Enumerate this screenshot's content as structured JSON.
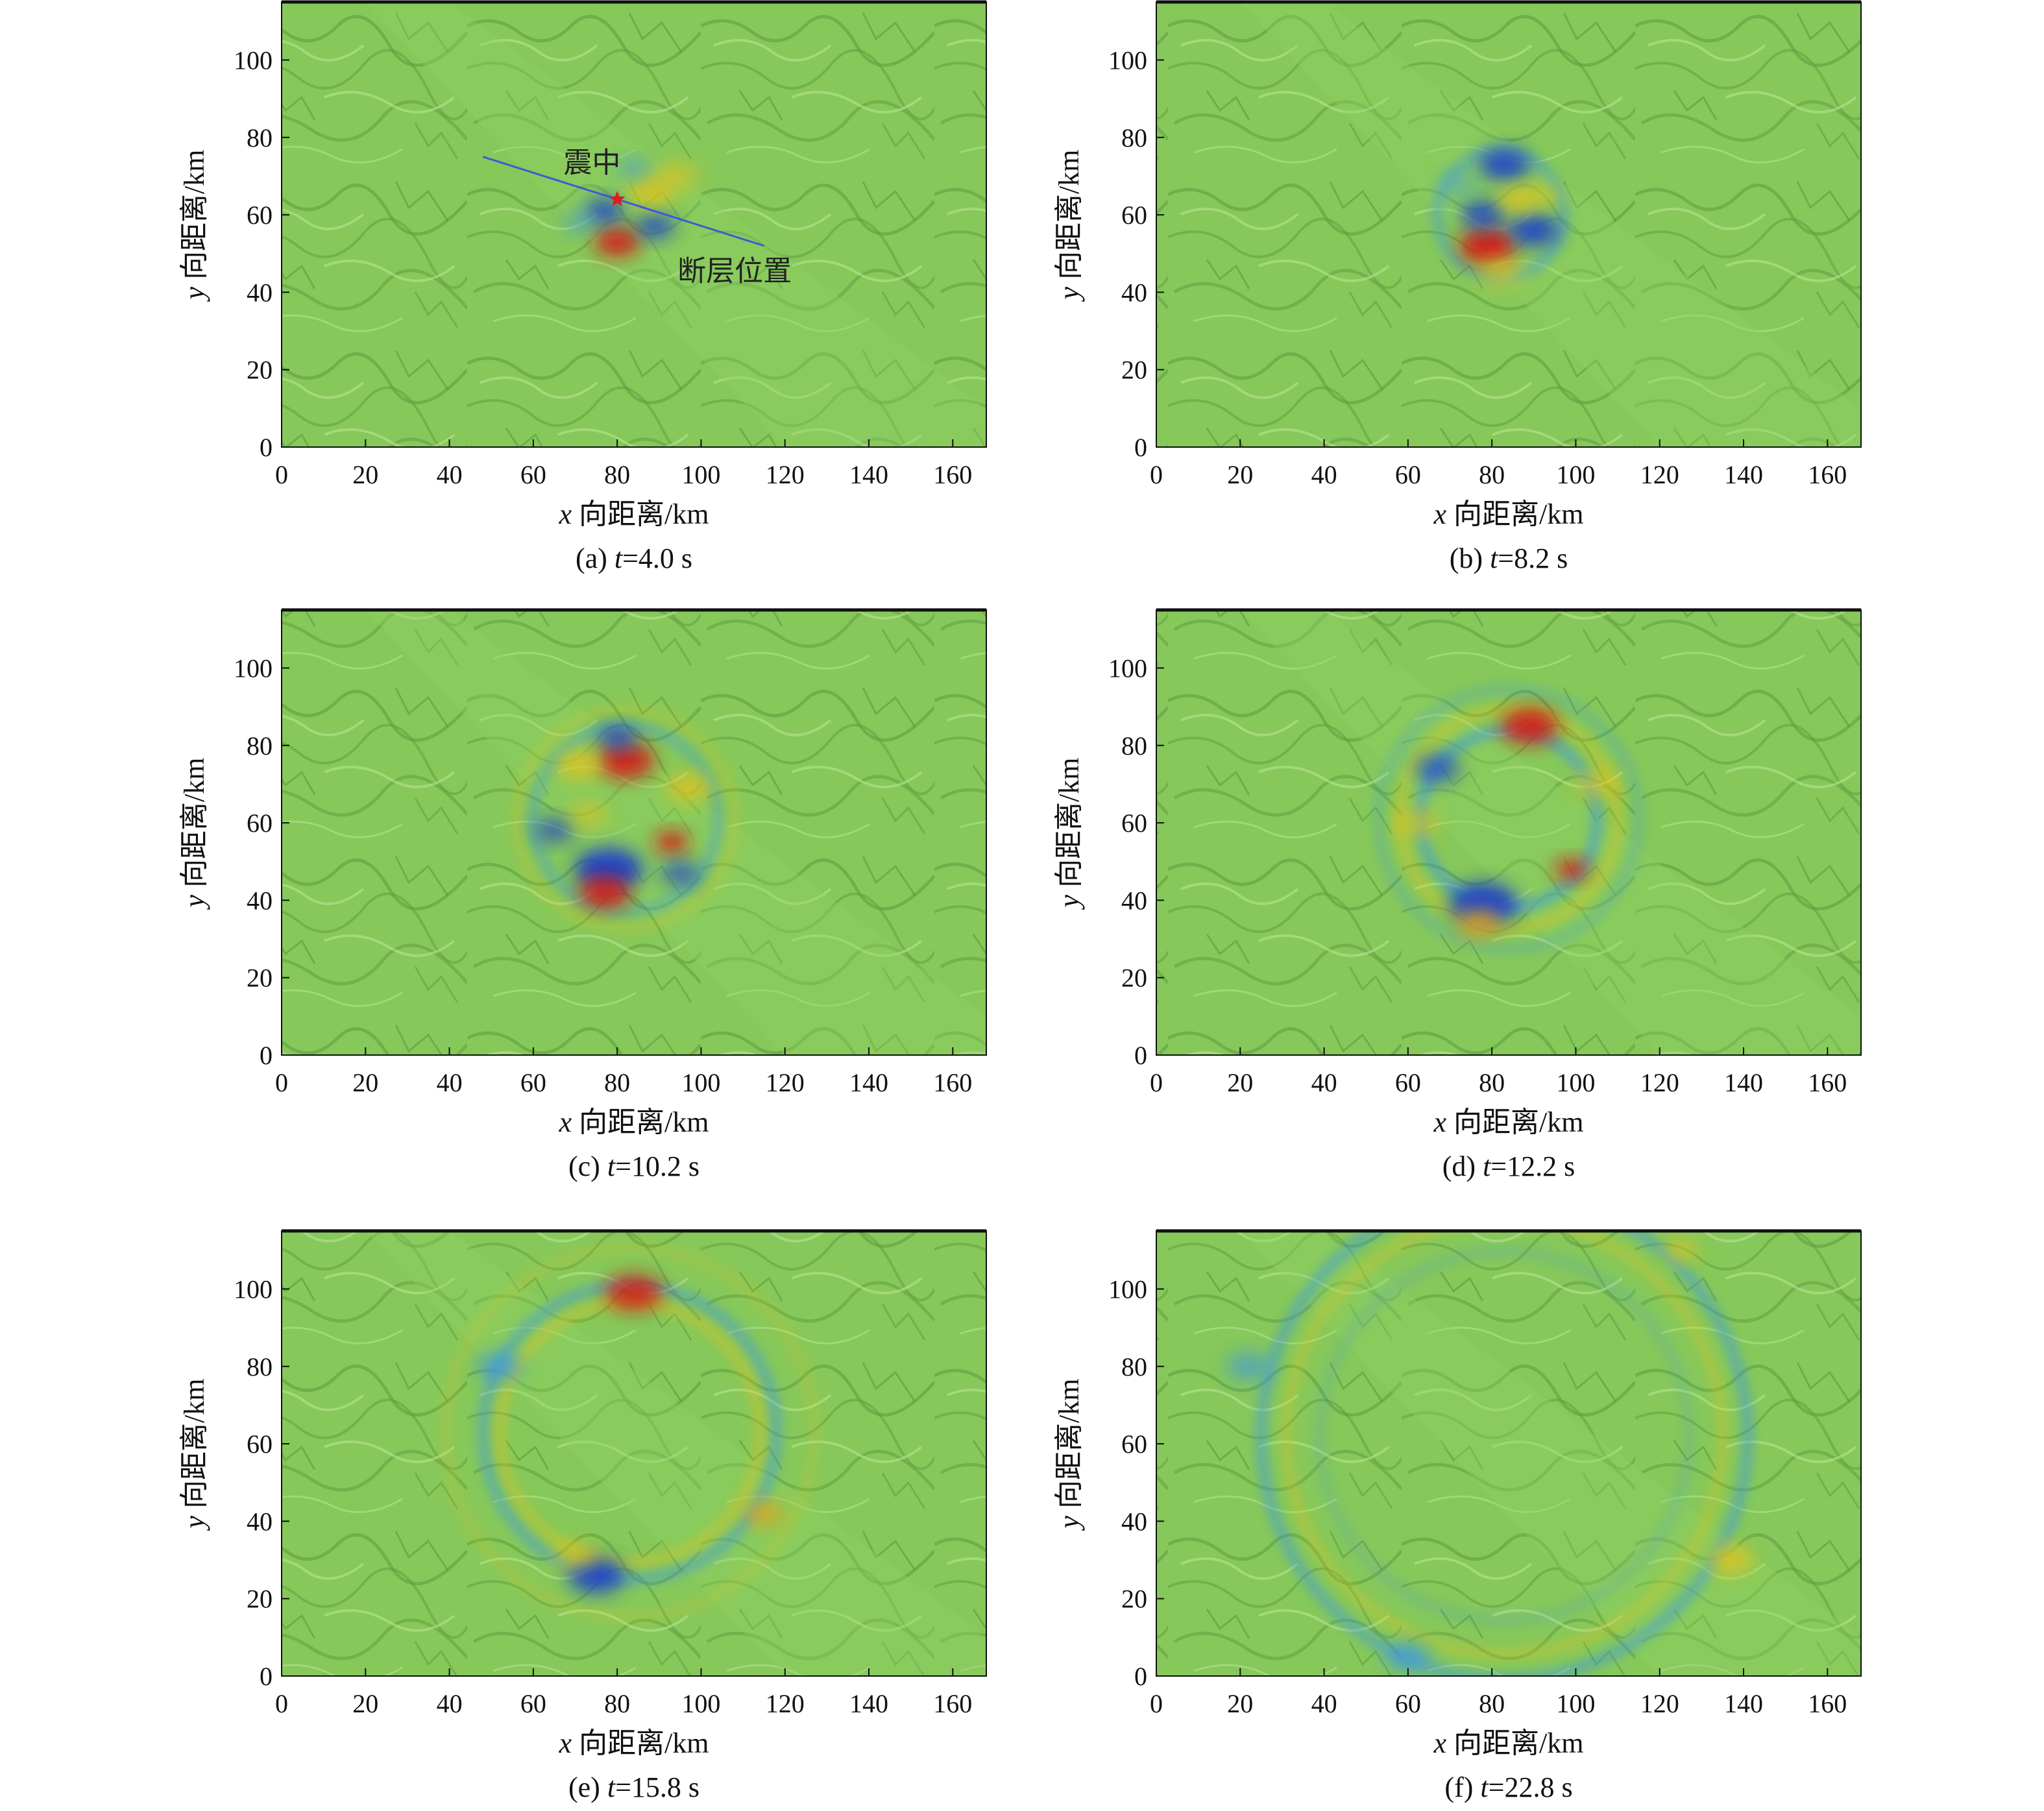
{
  "chart_data": [
    {
      "type": "heatmap",
      "panel": "a",
      "caption": {
        "prefix": "(a) ",
        "var": "t",
        "rest": "=4.0 s"
      },
      "xlabel": {
        "var": "x",
        "text": " 向距离/km"
      },
      "ylabel": {
        "var": "y",
        "text": " 向距离/km"
      },
      "xlim": [
        0,
        168
      ],
      "ylim": [
        0,
        115
      ],
      "xticks": [
        0,
        20,
        40,
        60,
        80,
        100,
        120,
        140,
        160
      ],
      "yticks": [
        0,
        20,
        40,
        60,
        80,
        100
      ],
      "annotations": {
        "epicenter_label": "震中",
        "fault_label": "断层位置",
        "epicenter": {
          "x": 80,
          "y": 64
        },
        "fault_line": [
          {
            "x": 48,
            "y": 75
          },
          {
            "x": 115,
            "y": 52
          }
        ]
      },
      "blobs": [
        {
          "x": 80,
          "y": 53,
          "r": 4,
          "color": "#d41818",
          "o": 0.9
        },
        {
          "x": 77,
          "y": 61,
          "r": 3.5,
          "color": "#1d3fc9",
          "o": 0.85
        },
        {
          "x": 89,
          "y": 57,
          "r": 3.5,
          "color": "#1d3fc9",
          "o": 0.8
        },
        {
          "x": 88,
          "y": 66,
          "r": 4,
          "color": "#e3c21f",
          "o": 0.8
        },
        {
          "x": 94,
          "y": 70,
          "r": 4,
          "color": "#e3c21f",
          "o": 0.6
        },
        {
          "x": 84,
          "y": 72,
          "r": 3,
          "color": "#3b95e6",
          "o": 0.5
        },
        {
          "x": 71,
          "y": 58,
          "r": 3,
          "color": "#3b95e6",
          "o": 0.5
        }
      ],
      "rings": []
    },
    {
      "type": "heatmap",
      "panel": "b",
      "caption": {
        "prefix": "(b) ",
        "var": "t",
        "rest": "=8.2 s"
      },
      "xlabel": {
        "var": "x",
        "text": " 向距离/km"
      },
      "ylabel": {
        "var": "y",
        "text": " 向距离/km"
      },
      "xlim": [
        0,
        168
      ],
      "ylim": [
        0,
        115
      ],
      "xticks": [
        0,
        20,
        40,
        60,
        80,
        100,
        120,
        140,
        160
      ],
      "yticks": [
        0,
        20,
        40,
        60,
        80,
        100
      ],
      "blobs": [
        {
          "x": 79,
          "y": 52,
          "r": 5,
          "color": "#d41818",
          "o": 0.95
        },
        {
          "x": 90,
          "y": 56,
          "r": 4.5,
          "color": "#1d3fc9",
          "o": 0.9
        },
        {
          "x": 78,
          "y": 60,
          "r": 4,
          "color": "#1d3fc9",
          "o": 0.85
        },
        {
          "x": 83,
          "y": 73,
          "r": 4.5,
          "color": "#1d3fc9",
          "o": 0.9
        },
        {
          "x": 86,
          "y": 64,
          "r": 3.5,
          "color": "#e3c21f",
          "o": 0.8
        },
        {
          "x": 92,
          "y": 65,
          "r": 3,
          "color": "#e3c21f",
          "o": 0.6
        },
        {
          "x": 72,
          "y": 68,
          "r": 3,
          "color": "#3b95e6",
          "o": 0.5
        },
        {
          "x": 82,
          "y": 45,
          "r": 4,
          "color": "#e3c21f",
          "o": 0.6
        }
      ],
      "rings": [
        {
          "cx": 82,
          "cy": 60,
          "r": 15,
          "color": "#3b95e6",
          "o": 0.35
        }
      ]
    },
    {
      "type": "heatmap",
      "panel": "c",
      "caption": {
        "prefix": "(c) ",
        "var": "t",
        "rest": "=10.2 s"
      },
      "xlabel": {
        "var": "x",
        "text": " 向距离/km"
      },
      "ylabel": {
        "var": "y",
        "text": " 向距离/km"
      },
      "xlim": [
        0,
        168
      ],
      "ylim": [
        0,
        115
      ],
      "xticks": [
        0,
        20,
        40,
        60,
        80,
        100,
        120,
        140,
        160
      ],
      "yticks": [
        0,
        20,
        40,
        60,
        80,
        100
      ],
      "blobs": [
        {
          "x": 78,
          "y": 48,
          "r": 6,
          "color": "#1d3fc9",
          "o": 0.95
        },
        {
          "x": 77,
          "y": 42,
          "r": 4.5,
          "color": "#d41818",
          "o": 0.9
        },
        {
          "x": 82,
          "y": 76,
          "r": 5,
          "color": "#d41818",
          "o": 0.9
        },
        {
          "x": 80,
          "y": 82,
          "r": 3.5,
          "color": "#1d3fc9",
          "o": 0.8
        },
        {
          "x": 93,
          "y": 55,
          "r": 3,
          "color": "#d41818",
          "o": 0.9
        },
        {
          "x": 71,
          "y": 75,
          "r": 4,
          "color": "#e3c21f",
          "o": 0.8
        },
        {
          "x": 97,
          "y": 69,
          "r": 4,
          "color": "#e3c21f",
          "o": 0.8
        },
        {
          "x": 65,
          "y": 58,
          "r": 3.5,
          "color": "#1d3fc9",
          "o": 0.7
        },
        {
          "x": 95,
          "y": 47,
          "r": 3.5,
          "color": "#1d3fc9",
          "o": 0.7
        },
        {
          "x": 73,
          "y": 62,
          "r": 3.5,
          "color": "#e3c21f",
          "o": 0.6
        }
      ],
      "rings": [
        {
          "cx": 82,
          "cy": 61,
          "r": 22,
          "color": "#3b95e6",
          "o": 0.3
        },
        {
          "cx": 82,
          "cy": 61,
          "r": 26,
          "color": "#e3c21f",
          "o": 0.2
        }
      ]
    },
    {
      "type": "heatmap",
      "panel": "d",
      "caption": {
        "prefix": "(d) ",
        "var": "t",
        "rest": "=12.2 s"
      },
      "xlabel": {
        "var": "x",
        "text": " 向距离/km"
      },
      "ylabel": {
        "var": "y",
        "text": " 向距离/km"
      },
      "xlim": [
        0,
        168
      ],
      "ylim": [
        0,
        115
      ],
      "xticks": [
        0,
        20,
        40,
        60,
        80,
        100,
        120,
        140,
        160
      ],
      "yticks": [
        0,
        20,
        40,
        60,
        80,
        100
      ],
      "blobs": [
        {
          "x": 78,
          "y": 39,
          "r": 6,
          "color": "#1d3fc9",
          "o": 0.95
        },
        {
          "x": 77,
          "y": 34,
          "r": 4,
          "color": "#e3a11f",
          "o": 0.8
        },
        {
          "x": 89,
          "y": 85,
          "r": 5,
          "color": "#d41818",
          "o": 0.9
        },
        {
          "x": 99,
          "y": 48,
          "r": 3,
          "color": "#d41818",
          "o": 0.85
        },
        {
          "x": 67,
          "y": 74,
          "r": 4,
          "color": "#1d3fc9",
          "o": 0.7
        },
        {
          "x": 105,
          "y": 70,
          "r": 4,
          "color": "#e3c21f",
          "o": 0.6
        },
        {
          "x": 62,
          "y": 60,
          "r": 4,
          "color": "#e3c21f",
          "o": 0.6
        }
      ],
      "rings": [
        {
          "cx": 84,
          "cy": 61,
          "r": 21,
          "color": "#3b95e6",
          "o": 0.45
        },
        {
          "cx": 84,
          "cy": 61,
          "r": 26,
          "color": "#e3c21f",
          "o": 0.35
        },
        {
          "cx": 84,
          "cy": 61,
          "r": 31,
          "color": "#3b95e6",
          "o": 0.2
        }
      ]
    },
    {
      "type": "heatmap",
      "panel": "e",
      "caption": {
        "prefix": "(e) ",
        "var": "t",
        "rest": "=15.8 s"
      },
      "xlabel": {
        "var": "x",
        "text": " 向距离/km"
      },
      "ylabel": {
        "var": "y",
        "text": " 向距离/km"
      },
      "xlim": [
        0,
        168
      ],
      "ylim": [
        0,
        115
      ],
      "xticks": [
        0,
        20,
        40,
        60,
        80,
        100,
        120,
        140,
        160
      ],
      "yticks": [
        0,
        20,
        40,
        60,
        80,
        100
      ],
      "blobs": [
        {
          "x": 84,
          "y": 99,
          "r": 5,
          "color": "#d41818",
          "o": 0.85
        },
        {
          "x": 75,
          "y": 26,
          "r": 5,
          "color": "#1d3fc9",
          "o": 0.9
        },
        {
          "x": 115,
          "y": 42,
          "r": 3.5,
          "color": "#e3a11f",
          "o": 0.8
        },
        {
          "x": 52,
          "y": 80,
          "r": 4,
          "color": "#3b95e6",
          "o": 0.7
        },
        {
          "x": 70,
          "y": 31,
          "r": 3.5,
          "color": "#e3c21f",
          "o": 0.7
        }
      ],
      "rings": [
        {
          "cx": 83,
          "cy": 63,
          "r": 35,
          "color": "#3b95e6",
          "o": 0.4
        },
        {
          "cx": 83,
          "cy": 63,
          "r": 31,
          "color": "#e3c21f",
          "o": 0.35
        },
        {
          "cx": 83,
          "cy": 63,
          "r": 44,
          "color": "#e3c21f",
          "o": 0.18
        }
      ]
    },
    {
      "type": "heatmap",
      "panel": "f",
      "caption": {
        "prefix": "(f) ",
        "var": "t",
        "rest": "=22.8 s"
      },
      "xlabel": {
        "var": "x",
        "text": " 向距离/km"
      },
      "ylabel": {
        "var": "y",
        "text": " 向距离/km"
      },
      "xlim": [
        0,
        168
      ],
      "ylim": [
        0,
        115
      ],
      "xticks": [
        0,
        20,
        40,
        60,
        80,
        100,
        120,
        140,
        160
      ],
      "yticks": [
        0,
        20,
        40,
        60,
        80,
        100
      ],
      "blobs": [
        {
          "x": 137,
          "y": 30,
          "r": 4,
          "color": "#e3c21f",
          "o": 0.8
        },
        {
          "x": 60,
          "y": 5,
          "r": 4,
          "color": "#3b95e6",
          "o": 0.7
        },
        {
          "x": 22,
          "y": 80,
          "r": 4,
          "color": "#3b95e6",
          "o": 0.6
        },
        {
          "x": 125,
          "y": 110,
          "r": 3,
          "color": "#e3c21f",
          "o": 0.7
        }
      ],
      "rings": [
        {
          "cx": 83,
          "cy": 62,
          "r": 58,
          "color": "#3b95e6",
          "o": 0.42
        },
        {
          "cx": 83,
          "cy": 62,
          "r": 52,
          "color": "#e3c21f",
          "o": 0.3
        },
        {
          "cx": 83,
          "cy": 62,
          "r": 44,
          "color": "#3b95e6",
          "o": 0.15
        }
      ]
    }
  ],
  "colors": {
    "background_green": "#86c85a",
    "terrain_shadow": "#4f8f33",
    "terrain_light": "#b4e48c",
    "fault_line": "#3b5bd6",
    "epicenter_star": "#e01b1b"
  }
}
